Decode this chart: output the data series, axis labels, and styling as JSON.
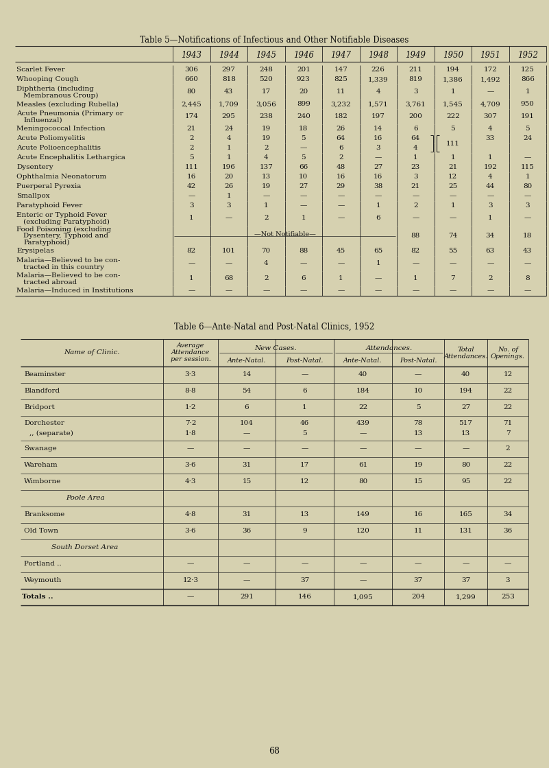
{
  "bg_color": "#d6d1b0",
  "page_number": "68",
  "table5": {
    "title": "Table 5—Notifications of Infectious and Other Notifiable Diseases",
    "years": [
      "1943",
      "1944",
      "1945",
      "1946",
      "1947",
      "1948",
      "1949",
      "1950",
      "1951",
      "1952"
    ],
    "rows": [
      {
        "label": "Scarlet Fever",
        "label2": null,
        "indent": 0,
        "values": [
          "306",
          "297",
          "248",
          "201",
          "147",
          "226",
          "211",
          "194",
          "172",
          "125"
        ]
      },
      {
        "label": "Whooping Cough",
        "label2": null,
        "indent": 0,
        "values": [
          "660",
          "818",
          "520",
          "923",
          "825",
          "1,339",
          "819",
          "1,386",
          "1,492",
          "866"
        ]
      },
      {
        "label": "Diphtheria (including",
        "label2": "Membranous Croup)",
        "indent": 0,
        "values": [
          "80",
          "43",
          "17",
          "20",
          "11",
          "4",
          "3",
          "1",
          "—",
          "1"
        ]
      },
      {
        "label": "Measles (excluding Rubella)",
        "label2": null,
        "indent": 0,
        "values": [
          "2,445",
          "1,709",
          "3,056",
          "899",
          "3,232",
          "1,571",
          "3,761",
          "1,545",
          "4,709",
          "950"
        ]
      },
      {
        "label": "Acute Pneumonia (Primary or",
        "label2": "Influenzal)",
        "indent": 0,
        "values": [
          "174",
          "295",
          "238",
          "240",
          "182",
          "197",
          "200",
          "222",
          "307",
          "191"
        ]
      },
      {
        "label": "Meningococcal Infection",
        "label2": null,
        "indent": 0,
        "values": [
          "21",
          "24",
          "19",
          "18",
          "26",
          "14",
          "6",
          "5",
          "4",
          "5"
        ]
      },
      {
        "label": "Acute Poliomyelitis",
        "label2": null,
        "indent": 0,
        "values": [
          "2",
          "4",
          "19",
          "5",
          "64",
          "16",
          "64",
          "",
          "33",
          "24"
        ],
        "polio1": true
      },
      {
        "label": "Acute Polioencephalitis",
        "label2": null,
        "indent": 0,
        "values": [
          "2",
          "1",
          "2",
          "—",
          "6",
          "3",
          "4",
          "111",
          "",
          ""
        ],
        "polio2": true
      },
      {
        "label": "Acute Encephalitis Lethargica",
        "label2": null,
        "indent": 0,
        "values": [
          "5",
          "1",
          "4",
          "5",
          "2",
          "—",
          "1",
          "1",
          "1",
          "—"
        ]
      },
      {
        "label": "Dysentery",
        "label2": null,
        "indent": 0,
        "values": [
          "111",
          "196",
          "137",
          "66",
          "48",
          "27",
          "23",
          "21",
          "192",
          "115"
        ]
      },
      {
        "label": "Ophthalmia Neonatorum",
        "label2": null,
        "indent": 0,
        "values": [
          "16",
          "20",
          "13",
          "10",
          "16",
          "16",
          "3",
          "12",
          "4",
          "1"
        ]
      },
      {
        "label": "Puerperal Pyrexia",
        "label2": null,
        "indent": 0,
        "values": [
          "42",
          "26",
          "19",
          "27",
          "29",
          "38",
          "21",
          "25",
          "44",
          "80"
        ]
      },
      {
        "label": "Smallpox",
        "label2": null,
        "indent": 0,
        "values": [
          "—",
          "1",
          "—",
          "—",
          "—",
          "—",
          "—",
          "—",
          "—",
          "—"
        ]
      },
      {
        "label": "Paratyphoid Fever",
        "label2": null,
        "indent": 0,
        "values": [
          "3",
          "3",
          "1",
          "—",
          "—",
          "1",
          "2",
          "1",
          "3",
          "3"
        ]
      },
      {
        "label": "Enteric or Typhoid Fever",
        "label2": "(excluding Paratyphoid)",
        "indent": 0,
        "values": [
          "1",
          "—",
          "2",
          "1",
          "—",
          "6",
          "—",
          "—",
          "1",
          "—"
        ]
      },
      {
        "label": "Food Poisoning (excluding",
        "label2": "Dysentery, Typhoid and",
        "label3": "Paratyphoid)",
        "indent": 0,
        "values": [
          "",
          "",
          "",
          "",
          "",
          "",
          "88",
          "74",
          "34",
          "18"
        ],
        "notifiable": true
      },
      {
        "label": "Erysipelas",
        "label2": null,
        "indent": 0,
        "values": [
          "82",
          "101",
          "70",
          "88",
          "45",
          "65",
          "82",
          "55",
          "63",
          "43"
        ]
      },
      {
        "label": "Malaria—Believed to be con-",
        "label2": "tracted in this country",
        "indent": 0,
        "values": [
          "—",
          "—",
          "4",
          "—",
          "—",
          "1",
          "—",
          "—",
          "—",
          "—"
        ]
      },
      {
        "label": "Malaria—Believed to be con-",
        "label2": "tracted abroad",
        "indent": 0,
        "values": [
          "1",
          "68",
          "2",
          "6",
          "1",
          "—",
          "1",
          "7",
          "2",
          "8"
        ]
      },
      {
        "label": "Malaria—Induced in Institutions",
        "label2": null,
        "indent": 0,
        "values": [
          "—",
          "—",
          "—",
          "—",
          "—",
          "—",
          "—",
          "—",
          "—",
          "—"
        ]
      }
    ]
  },
  "table6": {
    "title": "Table 6—Ante-Natal and Post-Natal Clinics, 1952",
    "rows": [
      {
        "label": "Beaminster",
        "label2": null,
        "italic": false,
        "bold": false,
        "values": [
          "3·3",
          "14",
          "—",
          "40",
          "—",
          "40",
          "12"
        ]
      },
      {
        "label": "Blandford",
        "label2": null,
        "italic": false,
        "bold": false,
        "values": [
          "8·8",
          "54",
          "6",
          "184",
          "10",
          "194",
          "22"
        ]
      },
      {
        "label": "Bridport",
        "label2": null,
        "italic": false,
        "bold": false,
        "values": [
          "1·2",
          "6",
          "1",
          "22",
          "5",
          "27",
          "22"
        ]
      },
      {
        "label": "Dorchester",
        "label2": ",, (separate)",
        "italic": false,
        "bold": false,
        "values": [
          "7·2",
          "104",
          "46",
          "439",
          "78",
          "517",
          "71"
        ],
        "values2": [
          "1·8",
          "—",
          "5",
          "—",
          "13",
          "13",
          "7"
        ]
      },
      {
        "label": "Swanage",
        "label2": null,
        "italic": false,
        "bold": false,
        "values": [
          "—",
          "—",
          "—",
          "—",
          "—",
          "—",
          "2"
        ]
      },
      {
        "label": "Wareham",
        "label2": null,
        "italic": false,
        "bold": false,
        "values": [
          "3·6",
          "31",
          "17",
          "61",
          "19",
          "80",
          "22"
        ]
      },
      {
        "label": "Wimborne",
        "label2": null,
        "italic": false,
        "bold": false,
        "values": [
          "4·3",
          "15",
          "12",
          "80",
          "15",
          "95",
          "22"
        ]
      },
      {
        "label": "Poole Area",
        "label2": null,
        "italic": true,
        "bold": false,
        "values": [
          "",
          "",
          "",
          "",
          "",
          "",
          ""
        ]
      },
      {
        "label": "Branksome",
        "label2": null,
        "italic": false,
        "bold": false,
        "values": [
          "4·8",
          "31",
          "13",
          "149",
          "16",
          "165",
          "34"
        ]
      },
      {
        "label": "Old Town",
        "label2": null,
        "italic": false,
        "bold": false,
        "values": [
          "3·6",
          "36",
          "9",
          "120",
          "11",
          "131",
          "36"
        ]
      },
      {
        "label": "South Dorset Area",
        "label2": null,
        "italic": true,
        "bold": false,
        "values": [
          "",
          "",
          "",
          "",
          "",
          "",
          ""
        ]
      },
      {
        "label": "Portland ..",
        "label2": null,
        "italic": false,
        "bold": false,
        "values": [
          "—",
          "—",
          "—",
          "—",
          "—",
          "—",
          "—"
        ]
      },
      {
        "label": "Weymouth",
        "label2": null,
        "italic": false,
        "bold": false,
        "values": [
          "12·3",
          "—",
          "37",
          "—",
          "37",
          "37",
          "3"
        ]
      },
      {
        "label": "Totals ..",
        "label2": null,
        "italic": false,
        "bold": true,
        "values": [
          "—",
          "291",
          "146",
          "1,095",
          "204",
          "1,299",
          "253"
        ]
      }
    ]
  }
}
